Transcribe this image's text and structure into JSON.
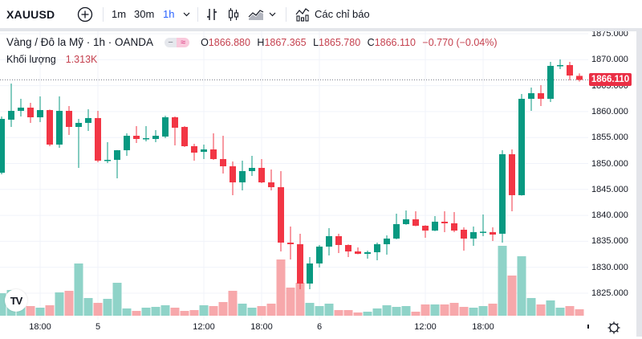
{
  "toolbar": {
    "symbol": "XAUUSD",
    "add_icon": "plus-circle-icon",
    "intervals": [
      "1m",
      "30m",
      "1h"
    ],
    "active_interval": "1h",
    "interval_dropdown_icon": "chevron-down-icon",
    "chart_type_icons": [
      "bars-icon",
      "candles-icon",
      "area-icon"
    ],
    "chart_type_dropdown_icon": "chevron-down-icon",
    "indicators_icon": "indicators-icon",
    "indicators_label": "Các chỉ báo"
  },
  "legend": {
    "title": "Vàng / Đô la Mỹ · 1h · OANDA",
    "pill_left": "−",
    "pill_right": "≈",
    "open_label": "O",
    "open": "1866.880",
    "high_label": "H",
    "high": "1867.365",
    "low_label": "L",
    "low": "1865.780",
    "close_label": "C",
    "close": "1866.110",
    "change": "−0.770 (−0.04%)",
    "volume_label": "Khối lượng",
    "volume_value": "1.313K"
  },
  "price_axis": {
    "last_price": "1866.110",
    "last_price_color": "#ea2f45"
  },
  "logo": "TV",
  "settings_icon": "gear-icon",
  "colors": {
    "up": "#089981",
    "down": "#f23645",
    "up_volume": "#8fd3c8",
    "down_volume": "#f7a8ab",
    "grid": "#f0f3fa",
    "accent": "#2962ff"
  },
  "chart_data": {
    "type": "candlestick",
    "title": "Vàng / Đô la Mỹ · 1h · OANDA",
    "symbol": "XAUUSD",
    "interval": "1h",
    "ylim": [
      1822,
      1877
    ],
    "yticks": [
      1875,
      1870,
      1865,
      1860,
      1855,
      1850,
      1845,
      1840,
      1835,
      1830,
      1825
    ],
    "ytick_labels": [
      "1875.000",
      "1870.000",
      "1865.000",
      "1860.000",
      "1855.000",
      "1850.000",
      "1845.000",
      "1840.000",
      "1835.000",
      "1830.000",
      "1825.000"
    ],
    "xticks": [
      {
        "index": 4,
        "label": "18:00"
      },
      {
        "index": 10,
        "label": "5"
      },
      {
        "index": 21,
        "label": "12:00"
      },
      {
        "index": 27,
        "label": "18:00"
      },
      {
        "index": 33,
        "label": "6"
      },
      {
        "index": 44,
        "label": "12:00"
      },
      {
        "index": 50,
        "label": "18:00"
      }
    ],
    "grid": true,
    "last_price": 1866.11,
    "volume_unit": "K",
    "ohlc": [
      [
        1848.22,
        1859.06,
        1847.91,
        1858.59
      ],
      [
        1858.44,
        1865.4,
        1857.04,
        1860.14
      ],
      [
        1860.14,
        1862.46,
        1859.06,
        1860.76
      ],
      [
        1860.76,
        1861.69,
        1857.82,
        1858.9
      ],
      [
        1858.9,
        1862.93,
        1857.97,
        1860.29
      ],
      [
        1860.29,
        1860.4,
        1853.33,
        1853.64
      ],
      [
        1853.64,
        1862.93,
        1853.02,
        1860.14
      ],
      [
        1860.14,
        1861.07,
        1855.5,
        1857.04
      ],
      [
        1857.04,
        1858.59,
        1849.15,
        1857.82
      ],
      [
        1857.82,
        1860.45,
        1856.27,
        1858.75
      ],
      [
        1858.75,
        1860.14,
        1850.23,
        1850.54
      ],
      [
        1850.54,
        1854.1,
        1850.08,
        1850.7
      ],
      [
        1850.7,
        1852.6,
        1847.14,
        1852.55
      ],
      [
        1852.55,
        1855.8,
        1851.47,
        1855.34
      ],
      [
        1855.34,
        1857.2,
        1853.95,
        1854.72
      ],
      [
        1854.72,
        1857.2,
        1854.26,
        1854.88
      ],
      [
        1854.72,
        1856.42,
        1854.1,
        1855.34
      ],
      [
        1855.19,
        1859.2,
        1854.9,
        1858.9
      ],
      [
        1858.9,
        1859.05,
        1853.48,
        1856.89
      ],
      [
        1857.04,
        1857.2,
        1853.17,
        1853.33
      ],
      [
        1853.33,
        1853.79,
        1850.54,
        1852.09
      ],
      [
        1852.24,
        1853.64,
        1850.85,
        1852.71
      ],
      [
        1852.71,
        1855.8,
        1850.7,
        1850.85
      ],
      [
        1850.85,
        1855.34,
        1848.07,
        1849.46
      ],
      [
        1849.46,
        1850.39,
        1843.89,
        1846.36
      ],
      [
        1846.36,
        1850.54,
        1844.81,
        1848.53
      ],
      [
        1848.53,
        1851.47,
        1847.6,
        1849.15
      ],
      [
        1849.15,
        1850.85,
        1846.2,
        1846.36
      ],
      [
        1846.36,
        1848.84,
        1844.81,
        1845.43
      ],
      [
        1845.43,
        1848.53,
        1833.05,
        1834.75
      ],
      [
        1834.75,
        1837.85,
        1831.5,
        1834.44
      ],
      [
        1834.44,
        1836.46,
        1825.77,
        1826.86
      ],
      [
        1826.86,
        1831.97,
        1825.77,
        1830.73
      ],
      [
        1830.73,
        1834.29,
        1829.95,
        1833.98
      ],
      [
        1833.98,
        1837.54,
        1832.28,
        1835.99
      ],
      [
        1835.99,
        1836.46,
        1832.74,
        1834.29
      ],
      [
        1834.29,
        1834.4,
        1831.97,
        1833.05
      ],
      [
        1833.05,
        1833.82,
        1832.5,
        1832.59
      ],
      [
        1832.59,
        1833.2,
        1831.66,
        1832.9
      ],
      [
        1832.9,
        1834.75,
        1831.35,
        1834.44
      ],
      [
        1834.44,
        1836.15,
        1832.43,
        1835.53
      ],
      [
        1835.53,
        1840.33,
        1835.4,
        1838.31
      ],
      [
        1838.31,
        1840.94,
        1838.2,
        1839.24
      ],
      [
        1839.24,
        1840.79,
        1837.9,
        1838.0
      ],
      [
        1838.0,
        1838.1,
        1835.68,
        1837.07
      ],
      [
        1837.07,
        1839.86,
        1836.95,
        1838.78
      ],
      [
        1838.78,
        1840.79,
        1836.77,
        1838.47
      ],
      [
        1838.47,
        1840.63,
        1836.77,
        1837.07
      ],
      [
        1837.23,
        1837.69,
        1833.2,
        1835.53
      ],
      [
        1835.53,
        1837.85,
        1834.13,
        1836.77
      ],
      [
        1836.77,
        1840.17,
        1835.99,
        1836.85
      ],
      [
        1836.77,
        1837.69,
        1835.06,
        1836.3
      ],
      [
        1836.46,
        1852.55,
        1834.75,
        1851.78
      ],
      [
        1851.78,
        1852.71,
        1840.79,
        1843.89
      ],
      [
        1843.89,
        1863.39,
        1843.8,
        1862.46
      ],
      [
        1862.46,
        1864.63,
        1860.14,
        1863.54
      ],
      [
        1863.54,
        1865.09,
        1861.07,
        1862.46
      ],
      [
        1862.46,
        1869.58,
        1861.84,
        1868.81
      ],
      [
        1868.81,
        1870.05,
        1868.19,
        1868.96
      ],
      [
        1868.96,
        1869.58,
        1866.02,
        1866.95
      ],
      [
        1866.88,
        1867.365,
        1865.78,
        1866.11
      ]
    ],
    "volume": [
      4.59,
      5.25,
      2.62,
      1.97,
      1.64,
      2.13,
      4.76,
      5.08,
      10.66,
      3.61,
      2.62,
      3.44,
      6.72,
      1.48,
      0.98,
      1.64,
      1.8,
      2.13,
      1.64,
      0.98,
      1.15,
      2.13,
      1.97,
      2.79,
      5.08,
      2.46,
      1.64,
      1.97,
      2.46,
      11.48,
      5.74,
      6.72,
      2.62,
      1.97,
      2.46,
      1.15,
      1.15,
      0.66,
      0.82,
      1.48,
      2.13,
      1.8,
      1.97,
      0.82,
      2.3,
      2.3,
      2.3,
      2.62,
      1.8,
      1.64,
      1.97,
      2.46,
      14.27,
      8.2,
      12.14,
      3.61,
      2.3,
      3.12,
      1.64,
      1.97,
      1.313
    ]
  }
}
